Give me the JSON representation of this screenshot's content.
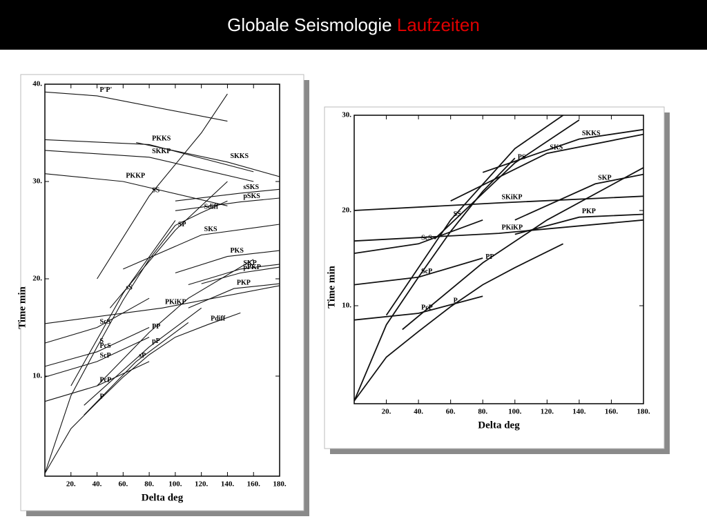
{
  "header": {
    "title": "Globale Seismologie",
    "title_highlight": "Laufzeiten"
  },
  "chart_data": [
    {
      "type": "line",
      "x_label": "Delta deg",
      "y_label": "Time min",
      "color": "#111111",
      "xlim": [
        0,
        180
      ],
      "ylim": [
        0,
        40
      ],
      "xticks": [
        {
          "value": 20,
          "label": "20."
        },
        {
          "value": 40,
          "label": "40."
        },
        {
          "value": 60,
          "label": "60."
        },
        {
          "value": 80,
          "label": "80."
        },
        {
          "value": 100,
          "label": "100."
        },
        {
          "value": 120,
          "label": "120."
        },
        {
          "value": 140,
          "label": "140."
        },
        {
          "value": 160,
          "label": "160."
        },
        {
          "value": 180,
          "label": "180."
        }
      ],
      "yticks": [
        {
          "value": 10,
          "label": "10."
        },
        {
          "value": 20,
          "label": "20."
        },
        {
          "value": 30,
          "label": "30."
        },
        {
          "value": 40,
          "label": "40."
        }
      ],
      "series": [
        {
          "name": "P'P'",
          "x": [
            0,
            40,
            140
          ],
          "values": [
            39.2,
            38.8,
            36.2
          ]
        },
        {
          "name": "PKKS",
          "x": [
            0,
            80,
            160
          ],
          "values": [
            34.3,
            33.8,
            31
          ]
        },
        {
          "name": "SKKP",
          "x": [
            0,
            80,
            160
          ],
          "values": [
            33.2,
            32.5,
            30
          ]
        },
        {
          "name": "PKKP",
          "x": [
            0,
            60,
            140
          ],
          "values": [
            30.8,
            30,
            27.5
          ]
        },
        {
          "name": "SKKS",
          "x": [
            70,
            140,
            180
          ],
          "values": [
            34,
            32,
            30.5
          ]
        },
        {
          "name": "sSKS",
          "x": [
            100,
            150,
            180
          ],
          "values": [
            28,
            28.8,
            29.2
          ]
        },
        {
          "name": "pSKS",
          "x": [
            100,
            150,
            180
          ],
          "values": [
            27,
            27.9,
            28.3
          ]
        },
        {
          "name": "SS",
          "x": [
            40,
            80,
            120,
            140
          ],
          "values": [
            20,
            28.5,
            35,
            39
          ]
        },
        {
          "name": "Sdiff",
          "x": [
            100,
            120,
            140
          ],
          "values": [
            25.5,
            26.8,
            28
          ]
        },
        {
          "name": "SP",
          "x": [
            50,
            100,
            140
          ],
          "values": [
            17,
            25,
            30
          ]
        },
        {
          "name": "sS",
          "x": [
            20,
            60,
            100
          ],
          "values": [
            9,
            18.5,
            26
          ]
        },
        {
          "name": "SKS",
          "x": [
            60,
            120,
            180
          ],
          "values": [
            21,
            24.5,
            25.6
          ]
        },
        {
          "name": "PKS",
          "x": [
            100,
            140,
            180
          ],
          "values": [
            20.6,
            22.3,
            22.9
          ]
        },
        {
          "name": "SKP",
          "x": [
            110,
            150,
            180
          ],
          "values": [
            19.4,
            21,
            21.5
          ]
        },
        {
          "name": "pPKP",
          "x": [
            120,
            150,
            180
          ],
          "values": [
            19.5,
            20.6,
            21.2
          ]
        },
        {
          "name": "PP",
          "x": [
            40,
            80,
            110,
            160
          ],
          "values": [
            9,
            14.5,
            18,
            22
          ]
        },
        {
          "name": "PKiKP",
          "x": [
            0,
            90,
            180
          ],
          "values": [
            15.4,
            17,
            19.3
          ]
        },
        {
          "name": "PKP",
          "x": [
            110,
            145,
            180
          ],
          "values": [
            17,
            19,
            19.5
          ]
        },
        {
          "name": "ScS",
          "x": [
            0,
            40,
            80
          ],
          "values": [
            13.4,
            15,
            18
          ]
        },
        {
          "name": "S",
          "x": [
            0,
            20,
            40,
            60,
            80,
            100
          ],
          "values": [
            0,
            8,
            13,
            17.8,
            22,
            25.5
          ]
        },
        {
          "name": "Pdiff",
          "x": [
            100,
            125,
            150
          ],
          "values": [
            14,
            15.3,
            16.5
          ]
        },
        {
          "name": "PcS",
          "x": [
            0,
            40,
            80
          ],
          "values": [
            11,
            12.5,
            15
          ]
        },
        {
          "name": "sP",
          "x": [
            30,
            70,
            110
          ],
          "values": [
            6,
            11.5,
            15.5
          ]
        },
        {
          "name": "pP",
          "x": [
            30,
            80,
            120
          ],
          "values": [
            7,
            13,
            17
          ]
        },
        {
          "name": "ScP",
          "x": [
            0,
            40,
            80
          ],
          "values": [
            9.9,
            11.5,
            14
          ]
        },
        {
          "name": "PcP",
          "x": [
            0,
            40,
            80
          ],
          "values": [
            7.4,
            9,
            11.5
          ]
        },
        {
          "name": "P",
          "x": [
            0,
            20,
            40,
            60,
            80,
            100
          ],
          "values": [
            0,
            4.6,
            7.3,
            9.9,
            12.2,
            14
          ]
        }
      ]
    },
    {
      "type": "line",
      "x_label": "Delta deg",
      "y_label": "Time min",
      "color": "#111111",
      "xlim": [
        0,
        180
      ],
      "ylim": [
        0,
        30
      ],
      "xticks": [
        {
          "value": 20,
          "label": "20."
        },
        {
          "value": 40,
          "label": "40."
        },
        {
          "value": 60,
          "label": "60."
        },
        {
          "value": 80,
          "label": "80."
        },
        {
          "value": 100,
          "label": "100."
        },
        {
          "value": 120,
          "label": "120."
        },
        {
          "value": 140,
          "label": "140."
        },
        {
          "value": 160,
          "label": "160."
        },
        {
          "value": 180,
          "label": "180."
        }
      ],
      "yticks": [
        {
          "value": 10,
          "label": "10."
        },
        {
          "value": 20,
          "label": "20."
        },
        {
          "value": 30,
          "label": "30."
        }
      ],
      "series": [
        {
          "name": "PS",
          "x": [
            50,
            100,
            140
          ],
          "values": [
            17,
            25,
            29.5
          ]
        },
        {
          "name": "SKKS",
          "x": [
            80,
            140,
            180
          ],
          "values": [
            24,
            27.5,
            28.5
          ]
        },
        {
          "name": "SKS",
          "x": [
            60,
            120,
            180
          ],
          "values": [
            21,
            26,
            28
          ]
        },
        {
          "name": "SS",
          "x": [
            20,
            60,
            100,
            130
          ],
          "values": [
            9,
            19,
            26.5,
            30
          ]
        },
        {
          "name": "SKP",
          "x": [
            100,
            150,
            180
          ],
          "values": [
            19,
            22.8,
            23.8
          ]
        },
        {
          "name": "SKiKP",
          "x": [
            0,
            90,
            180
          ],
          "values": [
            20,
            20.8,
            21.5
          ]
        },
        {
          "name": "PKiKP",
          "x": [
            0,
            90,
            180
          ],
          "values": [
            16.8,
            17.6,
            19
          ]
        },
        {
          "name": "PKP",
          "x": [
            100,
            140,
            180
          ],
          "values": [
            17.5,
            19.3,
            19.6
          ]
        },
        {
          "name": "S",
          "x": [
            0,
            20,
            40,
            60,
            80,
            100
          ],
          "values": [
            0,
            8,
            13,
            17.8,
            22,
            25.5
          ]
        },
        {
          "name": "ScS",
          "x": [
            0,
            40,
            80
          ],
          "values": [
            15.5,
            16.5,
            19
          ]
        },
        {
          "name": "PP",
          "x": [
            30,
            80,
            120,
            180
          ],
          "values": [
            7.5,
            14.5,
            19,
            24.5
          ]
        },
        {
          "name": "ScP",
          "x": [
            0,
            40,
            80
          ],
          "values": [
            12.2,
            13,
            15
          ]
        },
        {
          "name": "PcP",
          "x": [
            0,
            40,
            80
          ],
          "values": [
            8.5,
            9.2,
            11
          ]
        },
        {
          "name": "P",
          "x": [
            0,
            20,
            40,
            60,
            80,
            100,
            130
          ],
          "values": [
            0,
            4.6,
            7.3,
            9.9,
            12.2,
            14,
            16.5
          ]
        }
      ]
    }
  ]
}
